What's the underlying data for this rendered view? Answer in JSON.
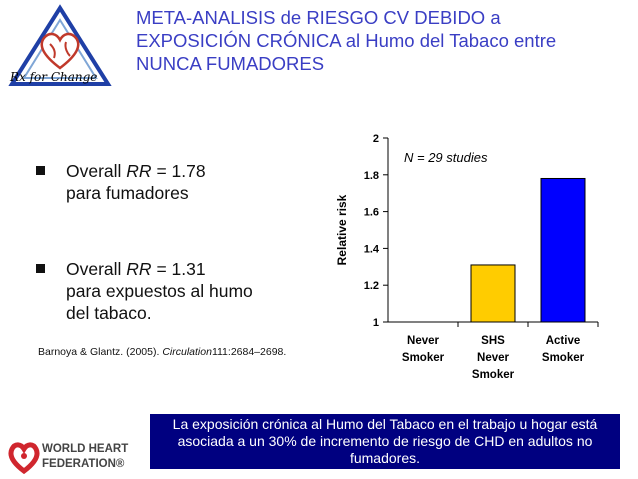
{
  "title": {
    "line1": "META-ANALISIS de RIESGO CV DEBIDO a",
    "line2": "EXPOSICIÓN CRÓNICA al Humo del Tabaco entre",
    "line3": "NUNCA FUMADORES"
  },
  "logo": {
    "text": "Rx for Change"
  },
  "bullets": [
    {
      "prefix": "Overall ",
      "italic": "RR",
      "suffix": " = 1.78",
      "rest": "para fumadores"
    },
    {
      "prefix": "Overall ",
      "italic": "RR",
      "suffix": " = 1.31",
      "rest": "para expuestos al humo del tabaco."
    }
  ],
  "citation": {
    "authors": "Barnoya & Glantz. (2005). ",
    "journal": "Circulation",
    "ref": "111:2684–2698."
  },
  "banner": {
    "text": "La exposición crónica al Humo del Tabaco en el trabajo u hogar está asociada a un  30%  de incremento de riesgo de  CHD en adultos no fumadores."
  },
  "footer_logo": {
    "line1": "WORLD HEART",
    "line2": "FEDERATION®"
  },
  "colors": {
    "title": "#3a3ec4",
    "banner_bg": "#000080",
    "shs_bar": "#ffcc00",
    "active_bar": "#0000ff"
  },
  "chart_data": {
    "type": "bar",
    "annotation": "N = 29 studies",
    "ylabel": "Relative risk",
    "ylim": [
      1,
      2
    ],
    "yticks": [
      "1",
      "1.2",
      "1.4",
      "1.6",
      "1.8",
      "2"
    ],
    "yvalues": [
      1,
      1.2,
      1.4,
      1.6,
      1.8,
      2
    ],
    "categories": [
      {
        "lines": [
          "Never",
          "Smoker"
        ],
        "value": 1.0,
        "color": "#ffffff"
      },
      {
        "lines": [
          "SHS",
          "Never",
          "Smoker"
        ],
        "value": 1.31,
        "color": "#ffcc00"
      },
      {
        "lines": [
          "Active",
          "Smoker"
        ],
        "value": 1.78,
        "color": "#0000ff"
      }
    ]
  }
}
